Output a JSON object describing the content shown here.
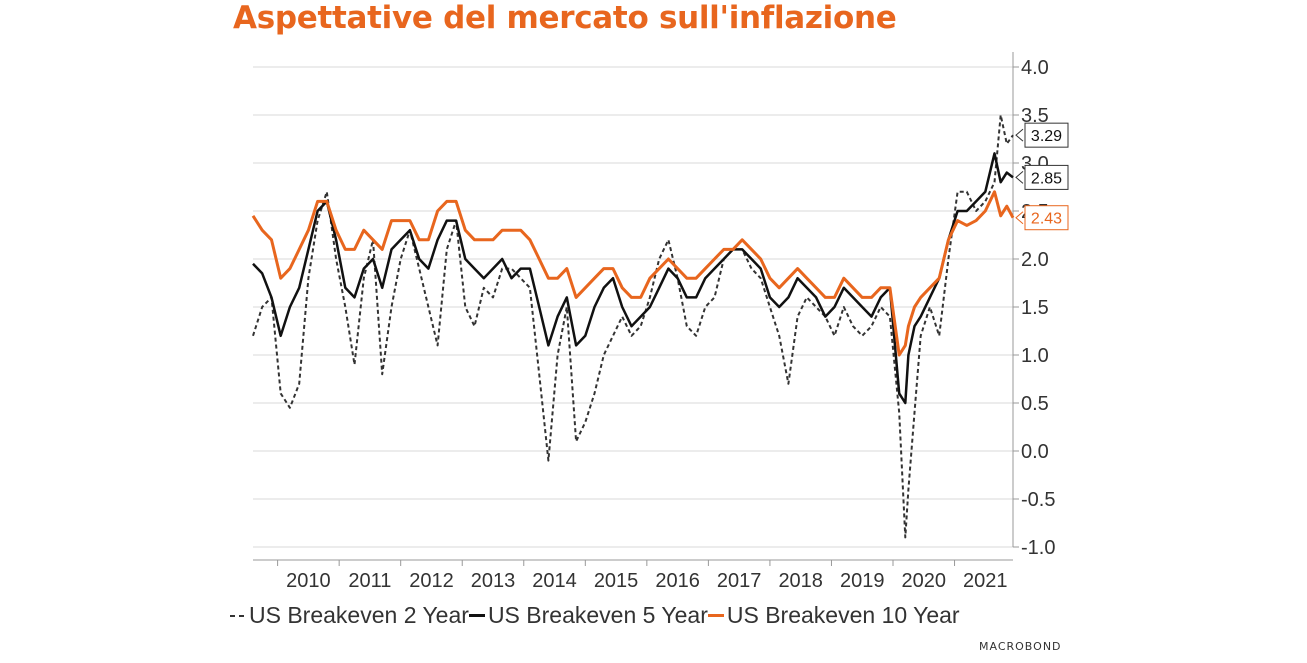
{
  "title": "Aspettative del mercato sull'inflazione",
  "brand": "MACROBOND",
  "chart_data": {
    "type": "line",
    "xlim": [
      2009.6,
      2021.95
    ],
    "ylim": [
      -1.0,
      4.0
    ],
    "yticks": [
      "4.0",
      "3.5",
      "3.0",
      "2.5",
      "2.0",
      "1.5",
      "1.0",
      "0.5",
      "0.0",
      "-0.5",
      "-1.0"
    ],
    "xticks": [
      "2010",
      "2011",
      "2012",
      "2013",
      "2014",
      "2015",
      "2016",
      "2017",
      "2018",
      "2019",
      "2020",
      "2021"
    ],
    "grid": true,
    "legend_position": "bottom",
    "series": [
      {
        "name": "US Breakeven 2 Year",
        "color": "#333333",
        "style": "dashed",
        "last_value": "3.29",
        "x": [
          2009.6,
          2009.75,
          2009.9,
          2010.05,
          2010.2,
          2010.35,
          2010.5,
          2010.65,
          2010.8,
          2010.95,
          2011.1,
          2011.25,
          2011.4,
          2011.55,
          2011.7,
          2011.85,
          2012.0,
          2012.15,
          2012.3,
          2012.45,
          2012.6,
          2012.75,
          2012.9,
          2013.05,
          2013.2,
          2013.35,
          2013.5,
          2013.65,
          2013.8,
          2013.95,
          2014.1,
          2014.25,
          2014.4,
          2014.55,
          2014.7,
          2014.85,
          2015.0,
          2015.15,
          2015.3,
          2015.45,
          2015.6,
          2015.75,
          2015.9,
          2016.05,
          2016.2,
          2016.35,
          2016.5,
          2016.65,
          2016.8,
          2016.95,
          2017.1,
          2017.25,
          2017.4,
          2017.55,
          2017.7,
          2017.85,
          2018.0,
          2018.15,
          2018.3,
          2018.45,
          2018.6,
          2018.75,
          2018.9,
          2019.05,
          2019.2,
          2019.35,
          2019.5,
          2019.65,
          2019.8,
          2019.95,
          2020.1,
          2020.2,
          2020.25,
          2020.35,
          2020.45,
          2020.6,
          2020.75,
          2020.9,
          2021.05,
          2021.2,
          2021.35,
          2021.5,
          2021.65,
          2021.75,
          2021.85,
          2021.95
        ],
        "y": [
          1.2,
          1.5,
          1.6,
          0.6,
          0.45,
          0.7,
          1.8,
          2.4,
          2.7,
          2.0,
          1.5,
          0.9,
          1.8,
          2.2,
          0.8,
          1.5,
          2.0,
          2.3,
          1.9,
          1.5,
          1.1,
          2.1,
          2.4,
          1.5,
          1.3,
          1.7,
          1.6,
          1.9,
          1.9,
          1.8,
          1.7,
          0.8,
          -0.1,
          1.0,
          1.5,
          0.1,
          0.3,
          0.6,
          1.0,
          1.2,
          1.4,
          1.2,
          1.3,
          1.6,
          2.0,
          2.2,
          1.8,
          1.3,
          1.2,
          1.5,
          1.6,
          2.0,
          2.1,
          2.1,
          1.9,
          1.8,
          1.5,
          1.2,
          0.7,
          1.4,
          1.6,
          1.5,
          1.4,
          1.2,
          1.5,
          1.3,
          1.2,
          1.3,
          1.5,
          1.4,
          0.4,
          -0.9,
          -0.4,
          0.4,
          1.2,
          1.5,
          1.2,
          2.0,
          2.7,
          2.7,
          2.5,
          2.6,
          2.8,
          3.5,
          3.2,
          3.29
        ]
      },
      {
        "name": "US Breakeven 5 Year",
        "color": "#111111",
        "style": "solid",
        "last_value": "2.85",
        "x": [
          2009.6,
          2009.75,
          2009.9,
          2010.05,
          2010.2,
          2010.35,
          2010.5,
          2010.65,
          2010.8,
          2010.95,
          2011.1,
          2011.25,
          2011.4,
          2011.55,
          2011.7,
          2011.85,
          2012.0,
          2012.15,
          2012.3,
          2012.45,
          2012.6,
          2012.75,
          2012.9,
          2013.05,
          2013.2,
          2013.35,
          2013.5,
          2013.65,
          2013.8,
          2013.95,
          2014.1,
          2014.25,
          2014.4,
          2014.55,
          2014.7,
          2014.85,
          2015.0,
          2015.15,
          2015.3,
          2015.45,
          2015.6,
          2015.75,
          2015.9,
          2016.05,
          2016.2,
          2016.35,
          2016.5,
          2016.65,
          2016.8,
          2016.95,
          2017.1,
          2017.25,
          2017.4,
          2017.55,
          2017.7,
          2017.85,
          2018.0,
          2018.15,
          2018.3,
          2018.45,
          2018.6,
          2018.75,
          2018.9,
          2019.05,
          2019.2,
          2019.35,
          2019.5,
          2019.65,
          2019.8,
          2019.95,
          2020.1,
          2020.2,
          2020.25,
          2020.35,
          2020.45,
          2020.6,
          2020.75,
          2020.9,
          2021.05,
          2021.2,
          2021.35,
          2021.5,
          2021.65,
          2021.75,
          2021.85,
          2021.95
        ],
        "y": [
          1.95,
          1.85,
          1.6,
          1.2,
          1.5,
          1.7,
          2.1,
          2.5,
          2.6,
          2.2,
          1.7,
          1.6,
          1.9,
          2.0,
          1.7,
          2.1,
          2.2,
          2.3,
          2.0,
          1.9,
          2.2,
          2.4,
          2.4,
          2.0,
          1.9,
          1.8,
          1.9,
          2.0,
          1.8,
          1.9,
          1.9,
          1.5,
          1.1,
          1.4,
          1.6,
          1.1,
          1.2,
          1.5,
          1.7,
          1.8,
          1.5,
          1.3,
          1.4,
          1.5,
          1.7,
          1.9,
          1.8,
          1.6,
          1.6,
          1.8,
          1.9,
          2.0,
          2.1,
          2.1,
          2.0,
          1.9,
          1.6,
          1.5,
          1.6,
          1.8,
          1.7,
          1.6,
          1.4,
          1.5,
          1.7,
          1.6,
          1.5,
          1.4,
          1.6,
          1.7,
          0.6,
          0.5,
          1.0,
          1.3,
          1.4,
          1.6,
          1.8,
          2.2,
          2.5,
          2.5,
          2.6,
          2.7,
          3.1,
          2.8,
          2.9,
          2.85
        ]
      },
      {
        "name": "US Breakeven 10 Year",
        "color": "#E8661E",
        "style": "solid",
        "last_value": "2.43",
        "x": [
          2009.6,
          2009.75,
          2009.9,
          2010.05,
          2010.2,
          2010.35,
          2010.5,
          2010.65,
          2010.8,
          2010.95,
          2011.1,
          2011.25,
          2011.4,
          2011.55,
          2011.7,
          2011.85,
          2012.0,
          2012.15,
          2012.3,
          2012.45,
          2012.6,
          2012.75,
          2012.9,
          2013.05,
          2013.2,
          2013.35,
          2013.5,
          2013.65,
          2013.8,
          2013.95,
          2014.1,
          2014.25,
          2014.4,
          2014.55,
          2014.7,
          2014.85,
          2015.0,
          2015.15,
          2015.3,
          2015.45,
          2015.6,
          2015.75,
          2015.9,
          2016.05,
          2016.2,
          2016.35,
          2016.5,
          2016.65,
          2016.8,
          2016.95,
          2017.1,
          2017.25,
          2017.4,
          2017.55,
          2017.7,
          2017.85,
          2018.0,
          2018.15,
          2018.3,
          2018.45,
          2018.6,
          2018.75,
          2018.9,
          2019.05,
          2019.2,
          2019.35,
          2019.5,
          2019.65,
          2019.8,
          2019.95,
          2020.1,
          2020.2,
          2020.25,
          2020.35,
          2020.45,
          2020.6,
          2020.75,
          2020.9,
          2021.05,
          2021.2,
          2021.35,
          2021.5,
          2021.65,
          2021.75,
          2021.85,
          2021.95
        ],
        "y": [
          2.45,
          2.3,
          2.2,
          1.8,
          1.9,
          2.1,
          2.3,
          2.6,
          2.6,
          2.3,
          2.1,
          2.1,
          2.3,
          2.2,
          2.1,
          2.4,
          2.4,
          2.4,
          2.2,
          2.2,
          2.5,
          2.6,
          2.6,
          2.3,
          2.2,
          2.2,
          2.2,
          2.3,
          2.3,
          2.3,
          2.2,
          2.0,
          1.8,
          1.8,
          1.9,
          1.6,
          1.7,
          1.8,
          1.9,
          1.9,
          1.7,
          1.6,
          1.6,
          1.8,
          1.9,
          2.0,
          1.9,
          1.8,
          1.8,
          1.9,
          2.0,
          2.1,
          2.1,
          2.2,
          2.1,
          2.0,
          1.8,
          1.7,
          1.8,
          1.9,
          1.8,
          1.7,
          1.6,
          1.6,
          1.8,
          1.7,
          1.6,
          1.6,
          1.7,
          1.7,
          1.0,
          1.1,
          1.3,
          1.5,
          1.6,
          1.7,
          1.8,
          2.2,
          2.4,
          2.35,
          2.4,
          2.5,
          2.7,
          2.45,
          2.55,
          2.43
        ]
      }
    ]
  }
}
